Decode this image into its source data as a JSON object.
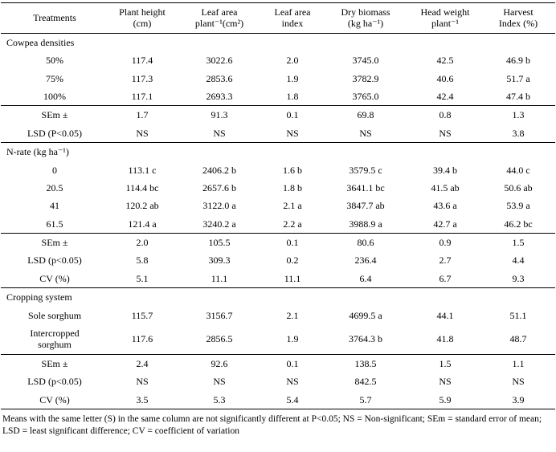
{
  "colors": {
    "background": "#ffffff",
    "text": "#000000",
    "rule": "#000000"
  },
  "table": {
    "headers": [
      "Treatments",
      "Plant height\n(cm)",
      "Leaf area\nplant⁻¹(cm²)",
      "Leaf area\nindex",
      "Dry biomass\n(kg ha⁻¹)",
      "Head weight\nplant⁻¹",
      "Harvest\nIndex (%)"
    ],
    "sections": [
      {
        "title": "Cowpea densities",
        "rows": [
          {
            "label": "50%",
            "values": [
              "117.4",
              "3022.6",
              "2.0",
              "3745.0",
              "42.5",
              "46.9 b"
            ]
          },
          {
            "label": "75%",
            "values": [
              "117.3",
              "2853.6",
              "1.9",
              "3782.9",
              "40.6",
              "51.7 a"
            ]
          },
          {
            "label": "100%",
            "values": [
              "117.1",
              "2693.3",
              "1.8",
              "3765.0",
              "42.4",
              "47.4 b"
            ]
          }
        ],
        "stats": [
          {
            "label": "SEm ±",
            "values": [
              "1.7",
              "91.3",
              "0.1",
              "69.8",
              "0.8",
              "1.3"
            ]
          },
          {
            "label": "LSD (P<0.05)",
            "values": [
              "NS",
              "NS",
              "NS",
              "NS",
              "NS",
              "3.8"
            ]
          }
        ]
      },
      {
        "title": "N-rate (kg ha⁻¹)",
        "rows": [
          {
            "label": "0",
            "values": [
              "113.1 c",
              "2406.2 b",
              "1.6 b",
              "3579.5 c",
              "39.4 b",
              "44.0 c"
            ]
          },
          {
            "label": "20.5",
            "values": [
              "114.4 bc",
              "2657.6 b",
              "1.8 b",
              "3641.1 bc",
              "41.5 ab",
              "50.6 ab"
            ]
          },
          {
            "label": "41",
            "values": [
              "120.2 ab",
              "3122.0 a",
              "2.1 a",
              "3847.7 ab",
              "43.6 a",
              "53.9 a"
            ]
          },
          {
            "label": "61.5",
            "values": [
              "121.4 a",
              "3240.2 a",
              "2.2 a",
              "3988.9 a",
              "42.7 a",
              "46.2 bc"
            ]
          }
        ],
        "stats": [
          {
            "label": "SEm ±",
            "values": [
              "2.0",
              "105.5",
              "0.1",
              "80.6",
              "0.9",
              "1.5"
            ]
          },
          {
            "label": "LSD (p<0.05)",
            "values": [
              "5.8",
              "309.3",
              "0.2",
              "236.4",
              "2.7",
              "4.4"
            ]
          },
          {
            "label": "CV (%)",
            "values": [
              "5.1",
              "11.1",
              "11.1",
              "6.4",
              "6.7",
              "9.3"
            ]
          }
        ]
      },
      {
        "title": "Cropping system",
        "rows": [
          {
            "label": "Sole sorghum",
            "values": [
              "115.7",
              "3156.7",
              "2.1",
              "4699.5 a",
              "44.1",
              "51.1"
            ]
          },
          {
            "label": "Intercropped\nsorghum",
            "values": [
              "117.6",
              "2856.5",
              "1.9",
              "3764.3 b",
              "41.8",
              "48.7"
            ]
          }
        ],
        "stats": [
          {
            "label": "SEm ±",
            "values": [
              "2.4",
              "92.6",
              "0.1",
              "138.5",
              "1.5",
              "1.1"
            ]
          },
          {
            "label": "LSD (p<0.05)",
            "values": [
              "NS",
              "NS",
              "NS",
              "842.5",
              "NS",
              "NS"
            ]
          },
          {
            "label": "CV (%)",
            "values": [
              "3.5",
              "5.3",
              "5.4",
              "5.7",
              "5.9",
              "3.9"
            ]
          }
        ]
      }
    ],
    "footnote": "Means with the same letter (S) in the same column are not significantly different at P<0.05; NS = Non-significant; SEm = standard error of mean; LSD = least significant difference; CV = coefficient of variation"
  }
}
